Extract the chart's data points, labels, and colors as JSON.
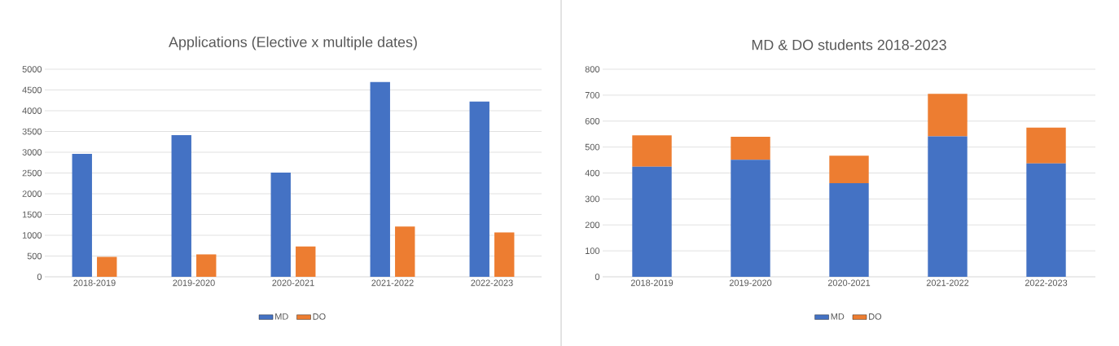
{
  "chart_data": [
    {
      "type": "bar",
      "title": "Applications (Elective x multiple dates)",
      "categories": [
        "2018-2019",
        "2019-2020",
        "2020-2021",
        "2021-2022",
        "2022-2023"
      ],
      "series": [
        {
          "name": "MD",
          "color": "#4472c4",
          "values": [
            2960,
            3410,
            2510,
            4690,
            4220
          ]
        },
        {
          "name": "DO",
          "color": "#ed7d31",
          "values": [
            480,
            540,
            730,
            1210,
            1070
          ]
        }
      ],
      "ylim": [
        0,
        5000
      ],
      "yticks": [
        0,
        500,
        1000,
        1500,
        2000,
        2500,
        3000,
        3500,
        4000,
        4500,
        5000
      ],
      "grid": "y",
      "legend": "bottom"
    },
    {
      "type": "bar",
      "title": "MD & DO students 2018-2023",
      "categories": [
        "2018-2019",
        "2019-2020",
        "2020-2021",
        "2021-2022",
        "2022-2023"
      ],
      "stacked": true,
      "series": [
        {
          "name": "MD",
          "color": "#4472c4",
          "values": [
            424,
            451,
            361,
            541,
            437
          ]
        },
        {
          "name": "DO",
          "color": "#ed7d31",
          "values": [
            121,
            89,
            106,
            164,
            138
          ]
        }
      ],
      "ylim": [
        0,
        800
      ],
      "yticks": [
        0,
        100,
        200,
        300,
        400,
        500,
        600,
        700,
        800
      ],
      "grid": "y",
      "legend": "bottom"
    }
  ]
}
